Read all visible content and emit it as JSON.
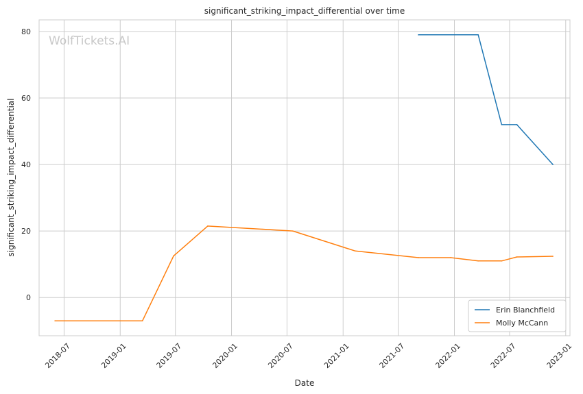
{
  "chart_data": {
    "type": "line",
    "title": "significant_striking_impact_differential over time",
    "xlabel": "Date",
    "ylabel": "significant_striking_impact_differential",
    "watermark": "WolfTickets.AI",
    "x_ticks": [
      "2018-07",
      "2019-01",
      "2019-07",
      "2020-01",
      "2020-07",
      "2021-01",
      "2021-07",
      "2022-01",
      "2022-07",
      "2023-01"
    ],
    "y_ticks": [
      0,
      20,
      40,
      60,
      80
    ],
    "xlim": [
      "2018-04-10",
      "2023-01-15"
    ],
    "ylim": [
      -11.5,
      83.5
    ],
    "grid": true,
    "legend_position": "bottom-right",
    "series": [
      {
        "name": "Erin Blanchfield",
        "color": "#1f77b4",
        "x": [
          "2021-09-05",
          "2022-03-20",
          "2022-06-05",
          "2022-07-25",
          "2022-11-20"
        ],
        "values": [
          79,
          79,
          52,
          52,
          40
        ]
      },
      {
        "name": "Molly McCann",
        "color": "#ff7f0e",
        "x": [
          "2018-06-01",
          "2019-03-15",
          "2019-06-25",
          "2019-10-15",
          "2020-07-20",
          "2021-02-10",
          "2021-09-05",
          "2021-12-20",
          "2022-03-20",
          "2022-06-05",
          "2022-07-25",
          "2022-11-20"
        ],
        "values": [
          -7,
          -7,
          12.5,
          21.5,
          20,
          14,
          12,
          12,
          11,
          11,
          12.2,
          12.4
        ]
      }
    ]
  }
}
